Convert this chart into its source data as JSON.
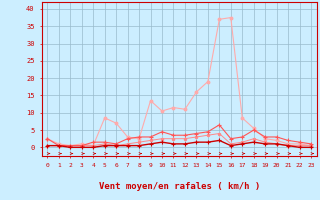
{
  "x": [
    0,
    1,
    2,
    3,
    4,
    5,
    6,
    7,
    8,
    9,
    10,
    11,
    12,
    13,
    14,
    15,
    16,
    17,
    18,
    19,
    20,
    21,
    22,
    23
  ],
  "series1": [
    2.5,
    1.0,
    0.5,
    1.0,
    0.5,
    8.5,
    7.0,
    3.0,
    2.5,
    13.5,
    10.5,
    11.5,
    11.0,
    16.0,
    19.0,
    37.0,
    37.5,
    8.5,
    5.5,
    2.5,
    2.0,
    1.0,
    1.0,
    0.5
  ],
  "series2": [
    2.5,
    0.5,
    0.5,
    0.5,
    1.5,
    1.5,
    1.0,
    2.5,
    3.0,
    3.0,
    4.5,
    3.5,
    3.5,
    4.0,
    4.5,
    6.5,
    2.5,
    3.0,
    5.0,
    3.0,
    3.0,
    2.0,
    1.5,
    1.0
  ],
  "series3": [
    0.5,
    0.5,
    0.5,
    0.5,
    0.5,
    1.0,
    0.5,
    1.0,
    1.5,
    2.0,
    2.5,
    2.5,
    2.5,
    3.0,
    3.5,
    4.0,
    1.0,
    1.5,
    2.5,
    1.5,
    1.0,
    0.5,
    0.5,
    0.5
  ],
  "series4": [
    0.5,
    0.5,
    0.0,
    0.0,
    0.0,
    0.5,
    0.5,
    0.5,
    0.5,
    1.0,
    1.5,
    1.0,
    1.0,
    1.5,
    1.5,
    2.0,
    0.5,
    1.0,
    1.5,
    1.0,
    1.0,
    0.5,
    0.0,
    0.0
  ],
  "color1": "#ffaaaa",
  "color2": "#ff5555",
  "color3": "#ff8888",
  "color4": "#cc0000",
  "bg_color": "#cceeff",
  "grid_color": "#99bbcc",
  "axis_color": "#cc0000",
  "tick_color": "#cc0000",
  "xlabel": "Vent moyen/en rafales ( km/h )",
  "yticks": [
    0,
    5,
    10,
    15,
    20,
    25,
    30,
    35,
    40
  ],
  "ylim": [
    -2.5,
    42
  ],
  "xlim": [
    -0.5,
    23.5
  ]
}
